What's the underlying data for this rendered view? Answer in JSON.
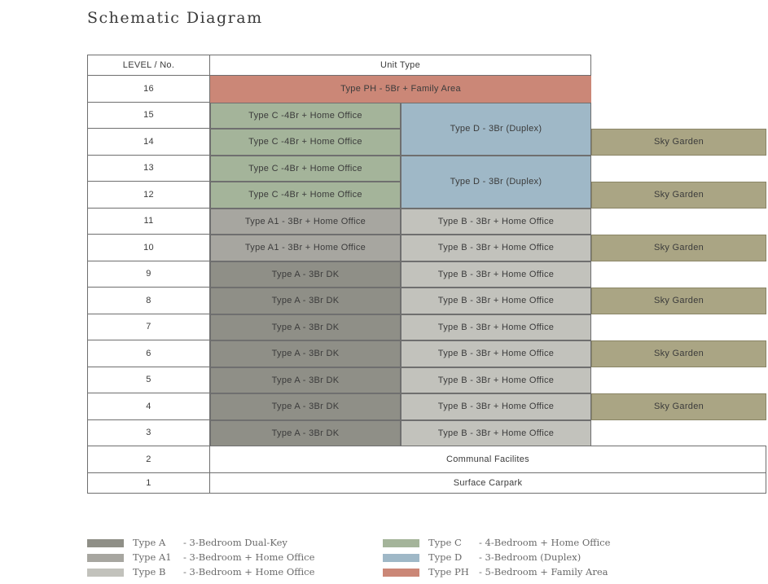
{
  "title": "Schematic Diagram",
  "headers": {
    "level": "LEVEL / No.",
    "unit_type": "Unit Type"
  },
  "levels": [
    "16",
    "15",
    "14",
    "13",
    "12",
    "11",
    "10",
    "9",
    "8",
    "7",
    "6",
    "5",
    "4",
    "3",
    "2",
    "1"
  ],
  "units": {
    "ph": "Type PH - 5Br + Family Area",
    "c": "Type C -4Br + Home Office",
    "d": "Type D - 3Br (Duplex)",
    "a1": "Type A1 - 3Br + Home Office",
    "a": "Type A - 3Br DK",
    "b": "Type B - 3Br + Home Office",
    "sky": "Sky Garden",
    "communal": "Communal Facilites",
    "carpark": "Surface Carpark"
  },
  "legend": [
    {
      "code": "Type A",
      "desc": "- 3-Bedroom Dual-Key",
      "color": "#8f8f87"
    },
    {
      "code": "Type A1",
      "desc": "- 3-Bedroom + Home Office",
      "color": "#a7a6a0"
    },
    {
      "code": "Type B",
      "desc": "- 3-Bedroom + Home Office",
      "color": "#c2c2bc"
    },
    {
      "code": "Type C",
      "desc": "- 4-Bedroom + Home Office",
      "color": "#a4b49a"
    },
    {
      "code": "Type D",
      "desc": "- 3-Bedroom (Duplex)",
      "color": "#9fb8c7"
    },
    {
      "code": "Type PH",
      "desc": "- 5-Bedroom + Family Area",
      "color": "#cb8777"
    }
  ]
}
